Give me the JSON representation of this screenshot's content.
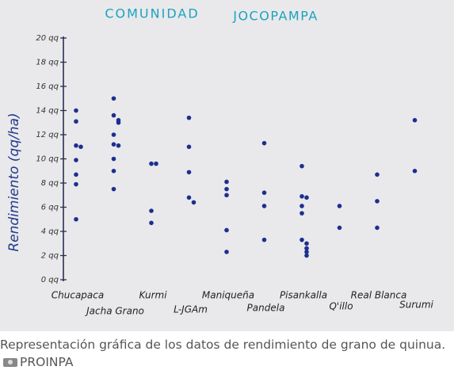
{
  "chart_data": {
    "type": "strip",
    "title": "COMUNIDAD",
    "subtitle": "JOCOPAMPA",
    "y_label": "Rendimiento (qq/ha)",
    "categories": [
      "Chucapaca",
      "Jacha Grano",
      "Kurmi",
      "L-JGAm",
      "Maniqueña",
      "Pandela",
      "Pisankalla",
      "Q'illo",
      "Real Blanca",
      "Surumi"
    ],
    "values": [
      [
        14.0,
        13.1,
        11.1,
        11.0,
        9.9,
        8.7,
        7.9,
        5.0
      ],
      [
        15.0,
        13.6,
        13.2,
        13.0,
        12.0,
        11.2,
        11.1,
        10.0,
        9.0,
        7.5
      ],
      [
        9.6,
        9.6,
        5.7,
        4.7
      ],
      [
        13.4,
        11.0,
        8.9,
        6.8,
        6.4
      ],
      [
        8.1,
        7.5,
        7.0,
        4.1,
        2.3
      ],
      [
        11.3,
        7.2,
        6.1,
        3.3
      ],
      [
        9.4,
        6.9,
        6.8,
        6.1,
        5.5,
        3.3,
        3.0,
        2.6,
        2.3,
        2.0
      ],
      [
        6.1,
        4.3
      ],
      [
        8.7,
        6.5,
        4.3
      ],
      [
        13.2,
        9.0
      ]
    ],
    "color": "#1c2f8f",
    "ylim": [
      0,
      20
    ],
    "yticks": [
      {
        "value": 0,
        "label": "0 qq"
      },
      {
        "value": 2,
        "label": "2 qq"
      },
      {
        "value": 4,
        "label": "4 qq"
      },
      {
        "value": 6,
        "label": "6 qq"
      },
      {
        "value": 8,
        "label": "8 qq"
      },
      {
        "value": 10,
        "label": "10 qq"
      },
      {
        "value": 12,
        "label": "12 qq"
      },
      {
        "value": 14,
        "label": "14 qq"
      },
      {
        "value": 16,
        "label": "16 qq"
      },
      {
        "value": 18,
        "label": "18 qq"
      },
      {
        "value": 20,
        "label": "20 qq"
      }
    ],
    "grid": false
  },
  "caption": {
    "text": "Representación gráfica de los datos de rendimiento de grano de quinua.",
    "credit": "PROINPA"
  }
}
